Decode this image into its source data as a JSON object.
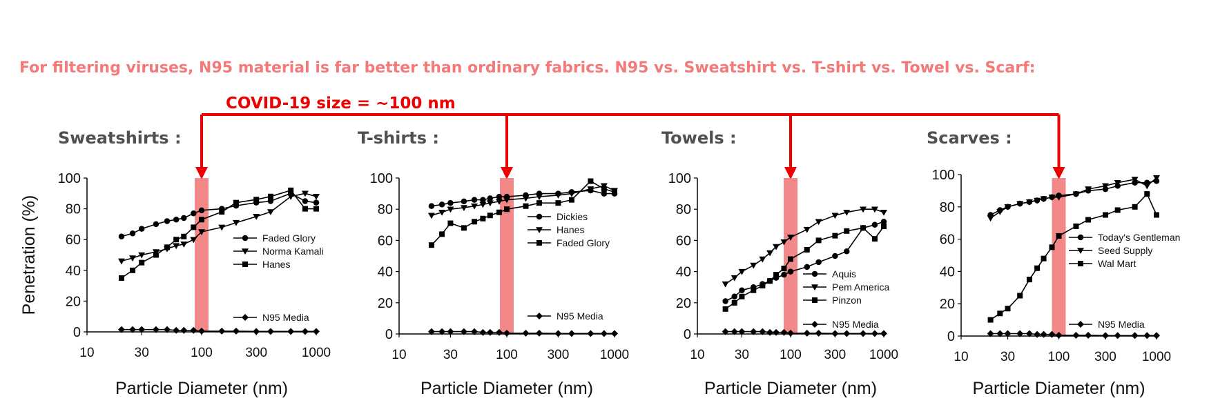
{
  "headline": "For filtering viruses, N95 material is far better than ordinary fabrics. N95 vs. Sweatshirt vs. T-shirt vs. Towel vs. Scarf:",
  "covid_label": "COVID-19 size = ~100 nm",
  "colors": {
    "headline": "#f47a7a",
    "annotation": "#ee0000",
    "highlight_band": "#f06a6a",
    "series": "#000000"
  },
  "chart_data": [
    {
      "type": "line",
      "title": "Sweatshirts :",
      "xlabel": "Particle Diameter (nm)",
      "ylabel": "Penetration (%)",
      "xscale": "log",
      "xlim": [
        10,
        1000
      ],
      "ylim": [
        0,
        100
      ],
      "xticks": [
        "10",
        "30",
        "100",
        "300",
        "1000"
      ],
      "yticks": [
        "0",
        "20",
        "40",
        "60",
        "80",
        "100"
      ],
      "highlight_x": 100,
      "legend_position": "right",
      "series": [
        {
          "name": "Faded Glory",
          "marker": "circle",
          "x": [
            20,
            25,
            30,
            40,
            50,
            60,
            70,
            85,
            100,
            150,
            200,
            300,
            400,
            600,
            800,
            1000
          ],
          "y": [
            62,
            64,
            67,
            70,
            72,
            73,
            74,
            77,
            79,
            80,
            82,
            84,
            85,
            90,
            85,
            84
          ]
        },
        {
          "name": "Norma Kamali",
          "marker": "triangle-down",
          "x": [
            20,
            25,
            30,
            40,
            50,
            60,
            70,
            85,
            100,
            150,
            200,
            300,
            400,
            600,
            800,
            1000
          ],
          "y": [
            46,
            48,
            50,
            52,
            54,
            56,
            57,
            60,
            65,
            68,
            71,
            75,
            78,
            88,
            90,
            88
          ]
        },
        {
          "name": "Hanes",
          "marker": "square",
          "x": [
            20,
            25,
            30,
            40,
            50,
            60,
            70,
            85,
            100,
            150,
            200,
            300,
            400,
            600,
            800,
            1000
          ],
          "y": [
            35,
            40,
            45,
            50,
            55,
            60,
            62,
            68,
            73,
            78,
            84,
            86,
            88,
            92,
            80,
            80
          ]
        },
        {
          "name": "N95 Media",
          "marker": "diamond",
          "x": [
            20,
            25,
            30,
            40,
            50,
            60,
            70,
            85,
            100,
            150,
            200,
            300,
            400,
            600,
            800,
            1000
          ],
          "y": [
            1.5,
            1.5,
            1.5,
            1.5,
            1.5,
            1,
            1,
            1,
            0.5,
            0.5,
            0.5,
            0.3,
            0.3,
            0.3,
            0.3,
            0.3
          ]
        }
      ]
    },
    {
      "type": "line",
      "title": "T-shirts :",
      "xlabel": "Particle Diameter (nm)",
      "ylabel": "",
      "xscale": "log",
      "xlim": [
        10,
        1000
      ],
      "ylim": [
        0,
        100
      ],
      "xticks": [
        "10",
        "30",
        "100",
        "300",
        "1000"
      ],
      "yticks": [
        "0",
        "20",
        "40",
        "60",
        "80",
        "100"
      ],
      "highlight_x": 100,
      "legend_position": "right",
      "series": [
        {
          "name": "Dickies",
          "marker": "circle",
          "x": [
            20,
            25,
            30,
            40,
            50,
            60,
            70,
            85,
            100,
            150,
            200,
            300,
            400,
            600,
            800,
            1000
          ],
          "y": [
            82,
            83,
            84,
            85,
            86,
            86,
            87,
            88,
            88,
            89,
            90,
            90,
            91,
            92,
            90,
            90
          ]
        },
        {
          "name": "Hanes",
          "marker": "triangle-down",
          "x": [
            20,
            25,
            30,
            40,
            50,
            60,
            70,
            85,
            100,
            150,
            200,
            300,
            400,
            600,
            800,
            1000
          ],
          "y": [
            76,
            78,
            80,
            81,
            82,
            83,
            84,
            85,
            86,
            87,
            88,
            89,
            90,
            93,
            95,
            92
          ]
        },
        {
          "name": "Faded Glory",
          "marker": "square",
          "x": [
            20,
            25,
            30,
            40,
            50,
            60,
            70,
            85,
            100,
            150,
            200,
            300,
            400,
            600,
            800,
            1000
          ],
          "y": [
            57,
            64,
            71,
            68,
            72,
            74,
            76,
            78,
            80,
            82,
            84,
            84,
            86,
            98,
            93,
            91
          ]
        },
        {
          "name": "N95 Media",
          "marker": "diamond",
          "x": [
            20,
            25,
            30,
            40,
            50,
            60,
            70,
            85,
            100,
            150,
            200,
            300,
            400,
            600,
            800,
            1000
          ],
          "y": [
            1.5,
            1.5,
            1.5,
            1.5,
            1.5,
            1,
            1,
            1,
            0.5,
            0.5,
            0.5,
            0.3,
            0.3,
            0.3,
            0.3,
            0.3
          ]
        }
      ]
    },
    {
      "type": "line",
      "title": "Towels :",
      "xlabel": "Particle Diameter (nm)",
      "ylabel": "",
      "xscale": "log",
      "xlim": [
        10,
        1000
      ],
      "ylim": [
        0,
        100
      ],
      "xticks": [
        "10",
        "30",
        "100",
        "300",
        "1000"
      ],
      "yticks": [
        "0",
        "20",
        "40",
        "60",
        "80",
        "100"
      ],
      "highlight_x": 100,
      "legend_position": "bottom-right",
      "series": [
        {
          "name": "Aquis",
          "marker": "circle",
          "x": [
            20,
            25,
            30,
            40,
            50,
            60,
            70,
            85,
            100,
            150,
            200,
            300,
            400,
            600,
            800,
            1000
          ],
          "y": [
            21,
            24,
            28,
            30,
            32,
            34,
            36,
            38,
            40,
            43,
            46,
            50,
            53,
            68,
            70,
            72
          ]
        },
        {
          "name": "Pem America",
          "marker": "triangle-down",
          "x": [
            20,
            25,
            30,
            40,
            50,
            60,
            70,
            85,
            100,
            150,
            200,
            300,
            400,
            600,
            800,
            1000
          ],
          "y": [
            32,
            36,
            40,
            44,
            48,
            52,
            56,
            59,
            62,
            67,
            72,
            76,
            78,
            80,
            80,
            78
          ]
        },
        {
          "name": "Pinzon",
          "marker": "square",
          "x": [
            20,
            25,
            30,
            40,
            50,
            60,
            70,
            85,
            100,
            150,
            200,
            300,
            400,
            600,
            800,
            1000
          ],
          "y": [
            16,
            20,
            24,
            28,
            31,
            34,
            38,
            42,
            48,
            54,
            60,
            63,
            66,
            68,
            61,
            69
          ]
        },
        {
          "name": "N95 Media",
          "marker": "diamond",
          "x": [
            20,
            25,
            30,
            40,
            50,
            60,
            70,
            85,
            100,
            150,
            200,
            300,
            400,
            600,
            800,
            1000
          ],
          "y": [
            1.5,
            1.5,
            1.5,
            1.5,
            1.5,
            1,
            1,
            1,
            0.5,
            0.5,
            0.5,
            0.3,
            0.3,
            0.3,
            0.3,
            0.3
          ]
        }
      ]
    },
    {
      "type": "line",
      "title": "Scarves :",
      "xlabel": "Particle Diameter (nm)",
      "ylabel": "",
      "xscale": "log",
      "xlim": [
        10,
        1000
      ],
      "ylim": [
        0,
        100
      ],
      "xticks": [
        "10",
        "30",
        "100",
        "300",
        "1000"
      ],
      "yticks": [
        "0",
        "20",
        "40",
        "60",
        "80",
        "100"
      ],
      "highlight_x": 100,
      "legend_position": "right",
      "series": [
        {
          "name": "Today's Gentleman",
          "marker": "circle",
          "x": [
            20,
            25,
            30,
            40,
            50,
            60,
            70,
            85,
            100,
            150,
            200,
            300,
            400,
            600,
            800,
            1000
          ],
          "y": [
            75,
            78,
            80,
            82,
            83,
            84,
            85,
            86,
            87,
            88,
            90,
            91,
            93,
            95,
            95,
            96
          ]
        },
        {
          "name": "Seed Supply",
          "marker": "triangle-down",
          "x": [
            20,
            25,
            30,
            40,
            50,
            60,
            70,
            85,
            100,
            150,
            200,
            300,
            400,
            600,
            800,
            1000
          ],
          "y": [
            73,
            77,
            80,
            82,
            83,
            84,
            85,
            86,
            86,
            88,
            91,
            93,
            95,
            97,
            93,
            98
          ]
        },
        {
          "name": "Wal Mart",
          "marker": "square",
          "x": [
            20,
            25,
            30,
            40,
            50,
            60,
            70,
            85,
            100,
            150,
            200,
            300,
            400,
            600,
            800,
            1000
          ],
          "y": [
            10,
            14,
            17,
            25,
            35,
            42,
            48,
            55,
            62,
            68,
            72,
            75,
            78,
            80,
            88,
            75
          ]
        },
        {
          "name": "N95 Media",
          "marker": "diamond",
          "x": [
            20,
            25,
            30,
            40,
            50,
            60,
            70,
            85,
            100,
            150,
            200,
            300,
            400,
            600,
            800,
            1000
          ],
          "y": [
            1.5,
            1.5,
            1.5,
            1.5,
            1.5,
            1,
            1,
            1,
            0.5,
            0.5,
            0.5,
            0.3,
            0.3,
            0.3,
            0.3,
            0.3
          ]
        }
      ]
    }
  ]
}
